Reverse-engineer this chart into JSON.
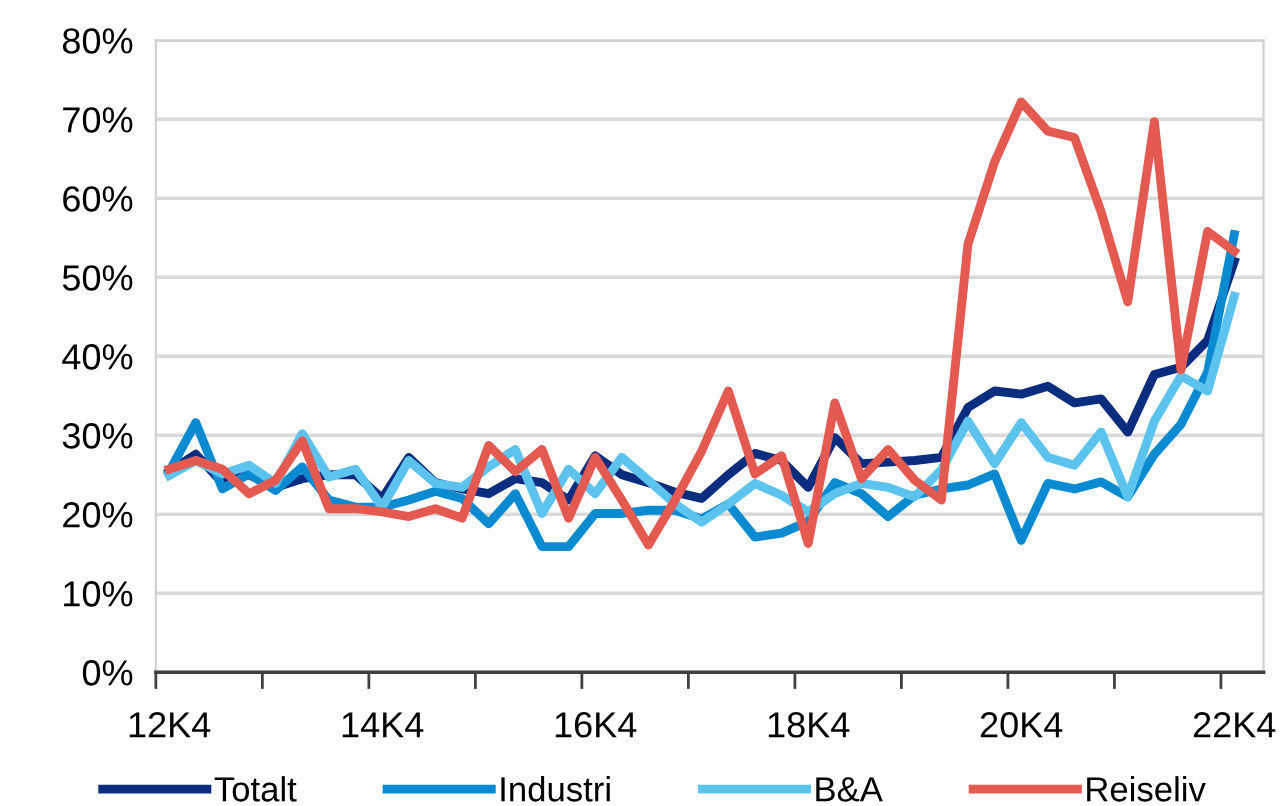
{
  "chart_data": {
    "type": "line",
    "categories": [
      "12K4",
      null,
      null,
      null,
      null,
      null,
      null,
      null,
      "14K4",
      null,
      null,
      null,
      null,
      null,
      null,
      null,
      "16K4",
      null,
      null,
      null,
      null,
      null,
      null,
      null,
      "18K4",
      null,
      null,
      null,
      null,
      null,
      null,
      null,
      "20K4",
      null,
      null,
      null,
      null,
      null,
      null,
      null,
      "22K4"
    ],
    "series": [
      {
        "name": "Totalt",
        "color": "#0b2d80",
        "values": [
          25.4,
          27.6,
          24,
          25,
          23.4,
          24.5,
          25,
          25,
          22,
          27.2,
          24,
          23.2,
          22.6,
          24.5,
          24,
          21.8,
          27.4,
          25,
          24,
          22.8,
          22,
          25,
          27.7,
          26.8,
          23.4,
          29.7,
          26.4,
          26.6,
          26.8,
          27.2,
          33.5,
          35.6,
          35.2,
          36.2,
          34.1,
          34.6,
          30.4,
          37.7,
          38.6,
          42,
          52
        ]
      },
      {
        "name": "Industri",
        "color": "#0a8ad0",
        "values": [
          25.4,
          31.6,
          23.2,
          25.1,
          23,
          26,
          21.8,
          20.9,
          20.9,
          21.8,
          22.9,
          22,
          18.8,
          22.6,
          15.9,
          15.9,
          20.1,
          20.1,
          20.5,
          20.5,
          19.4,
          21.3,
          17.1,
          17.6,
          19.1,
          24,
          22.6,
          19.7,
          22.4,
          23.2,
          23.7,
          25.1,
          16.7,
          23.9,
          23.2,
          24.1,
          22.2,
          27.6,
          31.4,
          38,
          55.4
        ]
      },
      {
        "name": "B&A",
        "color": "#5bc3ee",
        "values": [
          24.9,
          26.8,
          25.1,
          26.2,
          23.9,
          30.2,
          24.7,
          25.7,
          20.9,
          26.8,
          23.9,
          23.4,
          26,
          28.2,
          20.1,
          25.7,
          22.6,
          27.2,
          24.3,
          21.3,
          19,
          21.3,
          23.9,
          22.4,
          20.3,
          22.6,
          23.9,
          23.4,
          22.2,
          25.6,
          31.8,
          26.4,
          31.6,
          27.2,
          26.2,
          30.4,
          22.2,
          31.8,
          37.5,
          35.6,
          47.6
        ]
      },
      {
        "name": "Reiseliv",
        "color": "#e45a50",
        "values": [
          25.7,
          26.8,
          25.7,
          22.6,
          24.3,
          29.3,
          20.7,
          20.7,
          20.3,
          19.7,
          20.7,
          19.5,
          28.7,
          25.4,
          28.2,
          19.5,
          27.2,
          21.8,
          16.1,
          21.8,
          28,
          35.6,
          25.1,
          27.4,
          16.3,
          34.1,
          24.5,
          28.2,
          24.3,
          21.8,
          54.2,
          64.6,
          72.2,
          68.5,
          67.7,
          58.3,
          46.9,
          69.7,
          38.3,
          55.8,
          53.3
        ]
      }
    ],
    "ylim": [
      0,
      80
    ],
    "yticks": [
      {
        "value": 0,
        "label": "0%"
      },
      {
        "value": 10,
        "label": "10%"
      },
      {
        "value": 20,
        "label": "20%"
      },
      {
        "value": 30,
        "label": "30%"
      },
      {
        "value": 40,
        "label": "40%"
      },
      {
        "value": 50,
        "label": "50%"
      },
      {
        "value": 60,
        "label": "60%"
      },
      {
        "value": 70,
        "label": "70%"
      },
      {
        "value": 80,
        "label": "80%"
      }
    ],
    "grid": "y",
    "legend": "bottom",
    "marker": "none",
    "line_style": "solid"
  }
}
